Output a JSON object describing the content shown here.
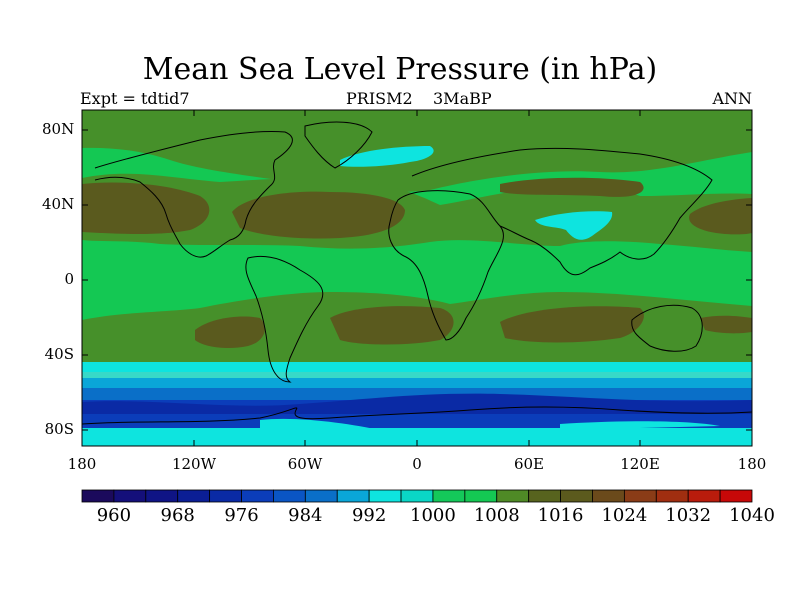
{
  "title": "Mean Sea Level Pressure (in hPa)",
  "expt_label": "Expt = tdtid7",
  "experiment_label": "PRISM2",
  "period_label": "3MaBP",
  "season_label": "ANN",
  "lat_labels": [
    "80N",
    "40N",
    "0",
    "40S",
    "80S"
  ],
  "lon_labels": [
    "180",
    "120W",
    "60W",
    "0",
    "60E",
    "120E",
    "180"
  ],
  "colorbar": {
    "colors": [
      "#1b0a5c",
      "#140f7a",
      "#0f1485",
      "#0b1e95",
      "#0a2aa5",
      "#0b3dba",
      "#0a55c4",
      "#0a6fc8",
      "#0aa6d8",
      "#0ee4df",
      "#0ad6c6",
      "#14c85a",
      "#14c853",
      "#4f8a26",
      "#57631e",
      "#5b5a1d",
      "#6b4a1b",
      "#8a3c17",
      "#a02e10",
      "#b91c0c",
      "#c70808"
    ],
    "tick_labels": [
      "960",
      "968",
      "976",
      "984",
      "992",
      "1000",
      "1008",
      "1016",
      "1024",
      "1032",
      "1040"
    ]
  },
  "field_colors": {
    "background": "#14c853",
    "mid_green": "#46902a",
    "dark_olive": "#5a5a1e",
    "cyan": "#0ee4df",
    "light_cyan": "#38d9c8",
    "light_blue": "#0aa6d8",
    "med_blue": "#0a6fc8",
    "blue": "#0b3dba",
    "dark_blue": "#0a2aa5",
    "coast": "#000000"
  }
}
